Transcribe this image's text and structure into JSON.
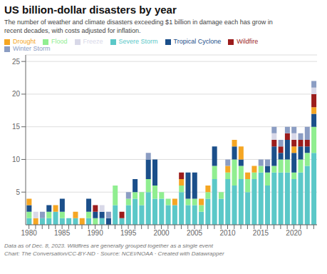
{
  "chart_data": {
    "type": "bar",
    "stacked": true,
    "title": "US billion-dollar disasters by year",
    "subtitle": "The number of weather and climate disasters exceeding $1 billion in damage each has grow in\nrecent decades, with costs adjusted for inflation.",
    "footnote": "Data as of Dec. 8, 2023. Wildfires are generally grouped together as a single event\nChart: The Conversation/CC-BY-ND · Source: NCEI/NOAA · Created with Datawrapper",
    "categories": [
      "1980",
      null,
      null,
      null,
      null,
      "1985",
      null,
      null,
      null,
      null,
      "1990",
      null,
      null,
      null,
      null,
      "1995",
      null,
      null,
      null,
      null,
      "2000",
      null,
      null,
      null,
      null,
      "2005",
      null,
      null,
      null,
      null,
      "2010",
      null,
      null,
      null,
      null,
      "2015",
      null,
      null,
      null,
      null,
      "2020",
      null,
      null,
      null
    ],
    "series": [
      {
        "name": "Severe Storm",
        "color": "#5BC8C8",
        "values": [
          1,
          0,
          1,
          1,
          2,
          1,
          1,
          1,
          0,
          1,
          0,
          1,
          0,
          3,
          1,
          3,
          4,
          3,
          5,
          4,
          4,
          3,
          3,
          5,
          3,
          3,
          2,
          4,
          7,
          4,
          7,
          6,
          7,
          5,
          7,
          8,
          6,
          8,
          8,
          8,
          7,
          8,
          9,
          11
        ]
      },
      {
        "name": "Flood",
        "color": "#90EE90",
        "values": [
          1,
          0,
          0,
          1,
          0,
          1,
          0,
          0,
          0,
          1,
          1,
          0,
          0,
          3,
          0,
          1,
          1,
          2,
          2,
          2,
          1,
          1,
          0,
          1,
          1,
          1,
          1,
          1,
          2,
          1,
          1,
          4,
          2,
          2,
          1,
          1,
          2,
          1,
          2,
          2,
          1,
          2,
          2,
          4
        ]
      },
      {
        "name": "Tropical Cyclone",
        "color": "#1B4F8A",
        "values": [
          1,
          0,
          0,
          1,
          0,
          2,
          0,
          0,
          0,
          2,
          1,
          1,
          1,
          0,
          0,
          0,
          2,
          0,
          3,
          4,
          0,
          0,
          0,
          0,
          4,
          4,
          0,
          0,
          3,
          0,
          0,
          2,
          1,
          0,
          0,
          0,
          1,
          3,
          1,
          3,
          3,
          2,
          1,
          2
        ]
      },
      {
        "name": "Drought",
        "color": "#F5A623",
        "values": [
          1,
          1,
          0,
          0,
          1,
          0,
          0,
          1,
          1,
          0,
          0,
          0,
          0,
          0,
          0,
          0,
          0,
          0,
          0,
          0,
          0,
          0,
          1,
          1,
          0,
          0,
          1,
          1,
          0,
          0,
          1,
          1,
          2,
          1,
          1,
          0,
          0,
          0,
          0,
          0,
          1,
          0,
          0,
          1
        ]
      },
      {
        "name": "Wildfire",
        "color": "#9B1C1C",
        "values": [
          0,
          0,
          0,
          0,
          0,
          0,
          0,
          0,
          0,
          0,
          1,
          0,
          0,
          0,
          1,
          0,
          0,
          0,
          0,
          0,
          0,
          0,
          0,
          1,
          0,
          0,
          0,
          0,
          0,
          0,
          0,
          0,
          0,
          0,
          0,
          0,
          0,
          1,
          1,
          1,
          1,
          1,
          1,
          2
        ]
      },
      {
        "name": "Freeze",
        "color": "#D8D8E8",
        "values": [
          0,
          1,
          0,
          0,
          0,
          0,
          0,
          0,
          0,
          0,
          0,
          1,
          0,
          0,
          0,
          0,
          0,
          0,
          0,
          0,
          0,
          0,
          0,
          0,
          0,
          0,
          0,
          0,
          0,
          0,
          0,
          0,
          0,
          0,
          0,
          0,
          0,
          1,
          0,
          0,
          1,
          0,
          0,
          1
        ]
      },
      {
        "name": "Winter Storm",
        "color": "#8B9DC3",
        "values": [
          0,
          0,
          1,
          0,
          0,
          0,
          0,
          0,
          0,
          0,
          0,
          0,
          1,
          0,
          0,
          1,
          0,
          0,
          1,
          0,
          0,
          0,
          0,
          0,
          0,
          0,
          0,
          0,
          0,
          0,
          1,
          0,
          0,
          0,
          0,
          1,
          1,
          1,
          1,
          1,
          1,
          1,
          2,
          1
        ]
      }
    ],
    "ylim": [
      0,
      26
    ],
    "yticks": [
      5,
      10,
      15,
      20,
      25
    ],
    "grid": true,
    "legend": "top-left"
  }
}
